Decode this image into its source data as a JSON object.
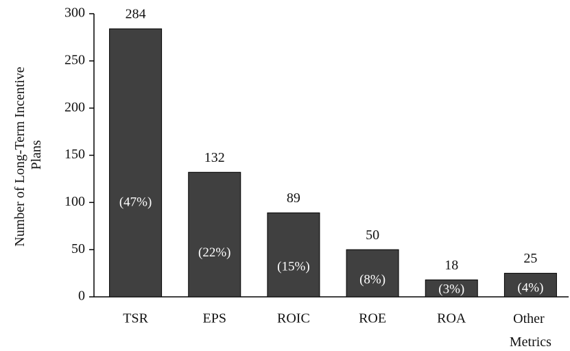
{
  "chart_data": {
    "type": "bar",
    "y_label": "Number of Long-Term Incentive Plans",
    "categories": [
      "TSR",
      "EPS",
      "ROIC",
      "ROE",
      "ROA",
      "Other Metrics"
    ],
    "values": [
      284,
      132,
      89,
      50,
      18,
      25
    ],
    "share_labels": [
      "(47%)",
      "(22%)",
      "(15%)",
      "(8%)",
      "(3%)",
      "(4%)"
    ],
    "color": "#404040",
    "ylim": [
      0,
      300
    ],
    "yticks": [
      0,
      50,
      100,
      150,
      200,
      250,
      300
    ],
    "grid": false
  }
}
